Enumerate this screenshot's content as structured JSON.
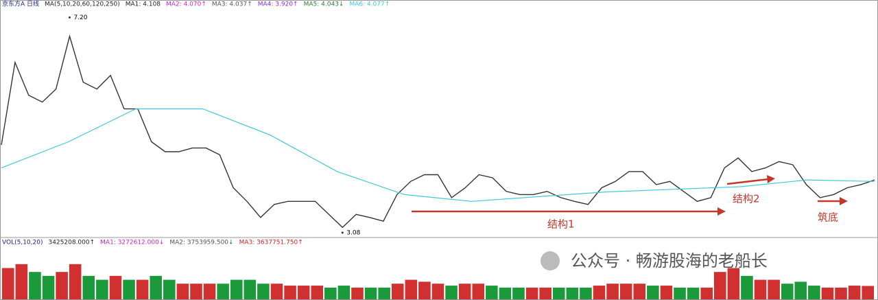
{
  "chart_data": [
    {
      "type": "line",
      "title": "京东方A 日线",
      "subtitle": "MA(5,10,20,60,120,250)",
      "legend": [
        {
          "name": "MA1: 4.108",
          "color": "#222222"
        },
        {
          "name": "MA2: 4.070↑",
          "color": "#cc22cc"
        },
        {
          "name": "MA3: 4.037↑",
          "color": "#555555"
        },
        {
          "name": "MA4: 3.920↑",
          "color": "#8a2be2"
        },
        {
          "name": "MA5: 4.043↓",
          "color": "#2e7d32"
        },
        {
          "name": "MA6: 4.077↑",
          "color": "#40c8d8"
        }
      ],
      "ylim": [
        3.0,
        7.35
      ],
      "series": [
        {
          "name": "close",
          "color": "#333333",
          "values": [
            4.76,
            6.34,
            5.71,
            5.58,
            5.83,
            6.84,
            5.96,
            5.83,
            6.09,
            5.45,
            5.45,
            4.82,
            4.63,
            4.63,
            4.7,
            4.7,
            4.57,
            3.94,
            3.68,
            3.37,
            3.62,
            3.68,
            3.68,
            3.68,
            3.43,
            3.18,
            3.43,
            3.37,
            3.3,
            3.81,
            4.06,
            4.19,
            4.19,
            3.75,
            3.94,
            4.19,
            4.13,
            3.87,
            3.81,
            3.81,
            3.87,
            3.75,
            3.68,
            3.62,
            3.94,
            4.06,
            4.25,
            4.25,
            4.0,
            4.06,
            3.87,
            3.68,
            3.75,
            4.32,
            4.51,
            4.25,
            4.32,
            4.44,
            4.38,
            4.0,
            3.75,
            3.81,
            3.94,
            4.0,
            4.09
          ]
        },
        {
          "name": "MA250",
          "color": "#40c8d8",
          "values": [
            4.32,
            4.82,
            5.45,
            5.45,
            4.95,
            4.25,
            3.81,
            3.68,
            3.77,
            3.86,
            3.91,
            3.96,
            4.09,
            4.06
          ]
        }
      ],
      "price_labels": [
        {
          "text": "7.20",
          "value": 7.2
        },
        {
          "text": "3.08",
          "value": 3.08
        }
      ],
      "annotations": [
        "结构1",
        "结构2",
        "筑底"
      ]
    },
    {
      "type": "bar",
      "title": "VOL(5,10,20)",
      "subtitle": "3425208.000↑",
      "legend": [
        {
          "name": "MA1: 3272612.000↓",
          "color": "#cc22cc"
        },
        {
          "name": "MA2: 3753959.500↓",
          "color": "#555555"
        },
        {
          "name": "MA3: 3637751.750↑",
          "color": "#cc2222"
        }
      ],
      "ylim": [
        0,
        13000000
      ],
      "values": [
        8000000,
        9000000,
        7000000,
        6000000,
        7000000,
        9000000,
        6000000,
        5000000,
        6000000,
        5000000,
        5000000,
        6000000,
        5000000,
        4000000,
        4000000,
        4000000,
        4000000,
        5000000,
        5000000,
        4000000,
        4000000,
        3500000,
        3500000,
        3500000,
        3000000,
        3500000,
        3000000,
        3000000,
        3000000,
        4000000,
        5000000,
        4500000,
        4000000,
        3500000,
        4000000,
        4000000,
        3500000,
        3000000,
        3000000,
        3000000,
        3000000,
        3000000,
        3000000,
        3000000,
        3500000,
        4000000,
        4000000,
        4000000,
        3500000,
        3500000,
        3000000,
        3000000,
        3000000,
        7000000,
        8000000,
        6000000,
        5000000,
        5000000,
        4000000,
        4500000,
        3500000,
        3000000,
        3000000,
        3500000,
        3425208
      ]
    }
  ],
  "watermark": "公众号 · 畅游股海的老船长"
}
